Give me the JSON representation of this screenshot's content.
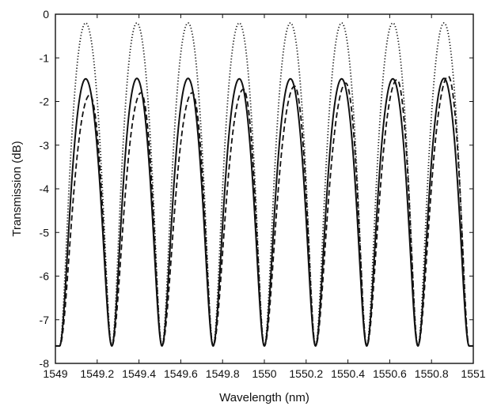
{
  "chart_data": {
    "type": "line",
    "title": "",
    "xlabel": "Wavelength (nm)",
    "ylabel": "Transmission (dB)",
    "xlim": [
      1549,
      1551
    ],
    "ylim": [
      -8,
      0
    ],
    "grid": false,
    "legend": "none",
    "x_ticks": [
      1549,
      1549.2,
      1549.4,
      1549.6,
      1549.8,
      1550,
      1550.2,
      1550.4,
      1550.6,
      1550.8,
      1551
    ],
    "x_tick_labels": [
      "1549",
      "1549.2",
      "1549.4",
      "1549.6",
      "1549.8",
      "1550",
      "1550.2",
      "1550.4",
      "1550.6",
      "1550.8",
      "1551"
    ],
    "y_ticks": [
      0,
      -1,
      -2,
      -3,
      -4,
      -5,
      -6,
      -7,
      -8
    ],
    "y_tick_labels": [
      "0",
      "-1",
      "-2",
      "-3",
      "-4",
      "-5",
      "-6",
      "-7",
      "-8"
    ],
    "notch_centers_nm": [
      1549.02,
      1549.27,
      1549.51,
      1549.755,
      1550.0,
      1550.245,
      1550.49,
      1550.735,
      1550.98
    ],
    "notch_depth_db": -7.6,
    "series": [
      {
        "style": "dotted",
        "peak_centers_nm": [
          1549.145,
          1549.39,
          1549.635,
          1549.88,
          1550.125,
          1550.37,
          1550.615,
          1550.86
        ],
        "peak_values_db": [
          -0.2,
          -0.2,
          -0.2,
          -0.2,
          -0.2,
          -0.2,
          -0.2,
          -0.2
        ]
      },
      {
        "style": "solid",
        "peak_centers_nm": [
          1549.145,
          1549.39,
          1549.635,
          1549.88,
          1550.125,
          1550.37,
          1550.615,
          1550.86
        ],
        "peak_values_db": [
          -1.48,
          -1.47,
          -1.47,
          -1.48,
          -1.48,
          -1.48,
          -1.48,
          -1.47
        ]
      },
      {
        "style": "dashed",
        "peak_centers_nm": [
          1549.165,
          1549.41,
          1549.655,
          1549.9,
          1550.145,
          1550.39,
          1550.635,
          1550.88
        ],
        "peak_values_db": [
          -1.85,
          -1.8,
          -1.8,
          -1.72,
          -1.65,
          -1.58,
          -1.5,
          -1.42
        ]
      }
    ],
    "colors": {
      "series": "#111111",
      "axes": "#111111",
      "background": "#ffffff"
    }
  }
}
